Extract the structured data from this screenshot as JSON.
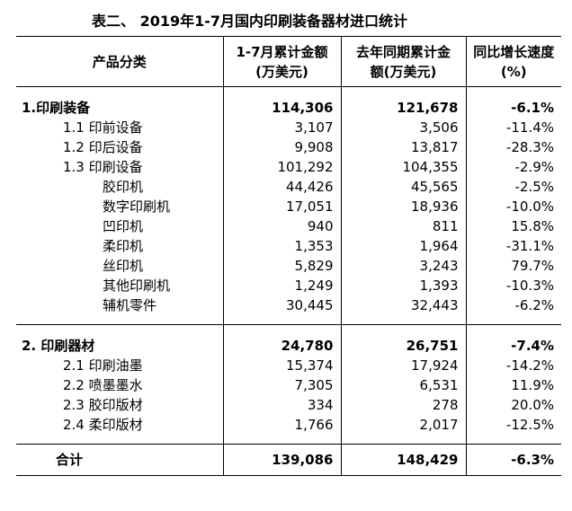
{
  "title": "表二、 2019年1-7月国内印刷装备器材进口统计",
  "headers": {
    "category": "产品分类",
    "cumulative_line1": "1-7月累计金额",
    "cumulative_line2": "(万美元)",
    "last_year_line1": "去年同期累计金",
    "last_year_line2": "额(万美元)",
    "growth_line1": "同比增长速度",
    "growth_line2": "(%)"
  },
  "sections": [
    {
      "rows": [
        {
          "name": "1.印刷装备",
          "cum": "114,306",
          "prev": "121,678",
          "growth": "-6.1%"
        },
        {
          "name": "1.1 印前设备",
          "cum": "3,107",
          "prev": "3,506",
          "growth": "-11.4%"
        },
        {
          "name": "1.2 印后设备",
          "cum": "9,908",
          "prev": "13,817",
          "growth": "-28.3%"
        },
        {
          "name": "1.3 印刷设备",
          "cum": "101,292",
          "prev": "104,355",
          "growth": "-2.9%"
        },
        {
          "name": "胶印机",
          "cum": "44,426",
          "prev": "45,565",
          "growth": "-2.5%"
        },
        {
          "name": "数字印刷机",
          "cum": "17,051",
          "prev": "18,936",
          "growth": "-10.0%"
        },
        {
          "name": "凹印机",
          "cum": "940",
          "prev": "811",
          "growth": "15.8%"
        },
        {
          "name": "柔印机",
          "cum": "1,353",
          "prev": "1,964",
          "growth": "-31.1%"
        },
        {
          "name": "丝印机",
          "cum": "5,829",
          "prev": "3,243",
          "growth": "79.7%"
        },
        {
          "name": "其他印刷机",
          "cum": "1,249",
          "prev": "1,393",
          "growth": "-10.3%"
        },
        {
          "name": "辅机零件",
          "cum": "30,445",
          "prev": "32,443",
          "growth": "-6.2%"
        }
      ]
    },
    {
      "rows": [
        {
          "name": "2. 印刷器材",
          "cum": "24,780",
          "prev": "26,751",
          "growth": "-7.4%"
        },
        {
          "name": "2.1 印刷油墨",
          "cum": "15,374",
          "prev": "17,924",
          "growth": "-14.2%"
        },
        {
          "name": "2.2 喷墨墨水",
          "cum": "7,305",
          "prev": "6,531",
          "growth": "11.9%"
        },
        {
          "name": "2.3 胶印版材",
          "cum": "334",
          "prev": "278",
          "growth": "20.0%"
        },
        {
          "name": "2.4 柔印版材",
          "cum": "1,766",
          "prev": "2,017",
          "growth": "-12.5%"
        }
      ]
    }
  ],
  "total": {
    "name": "合计",
    "cum": "139,086",
    "prev": "148,429",
    "growth": "-6.3%"
  }
}
